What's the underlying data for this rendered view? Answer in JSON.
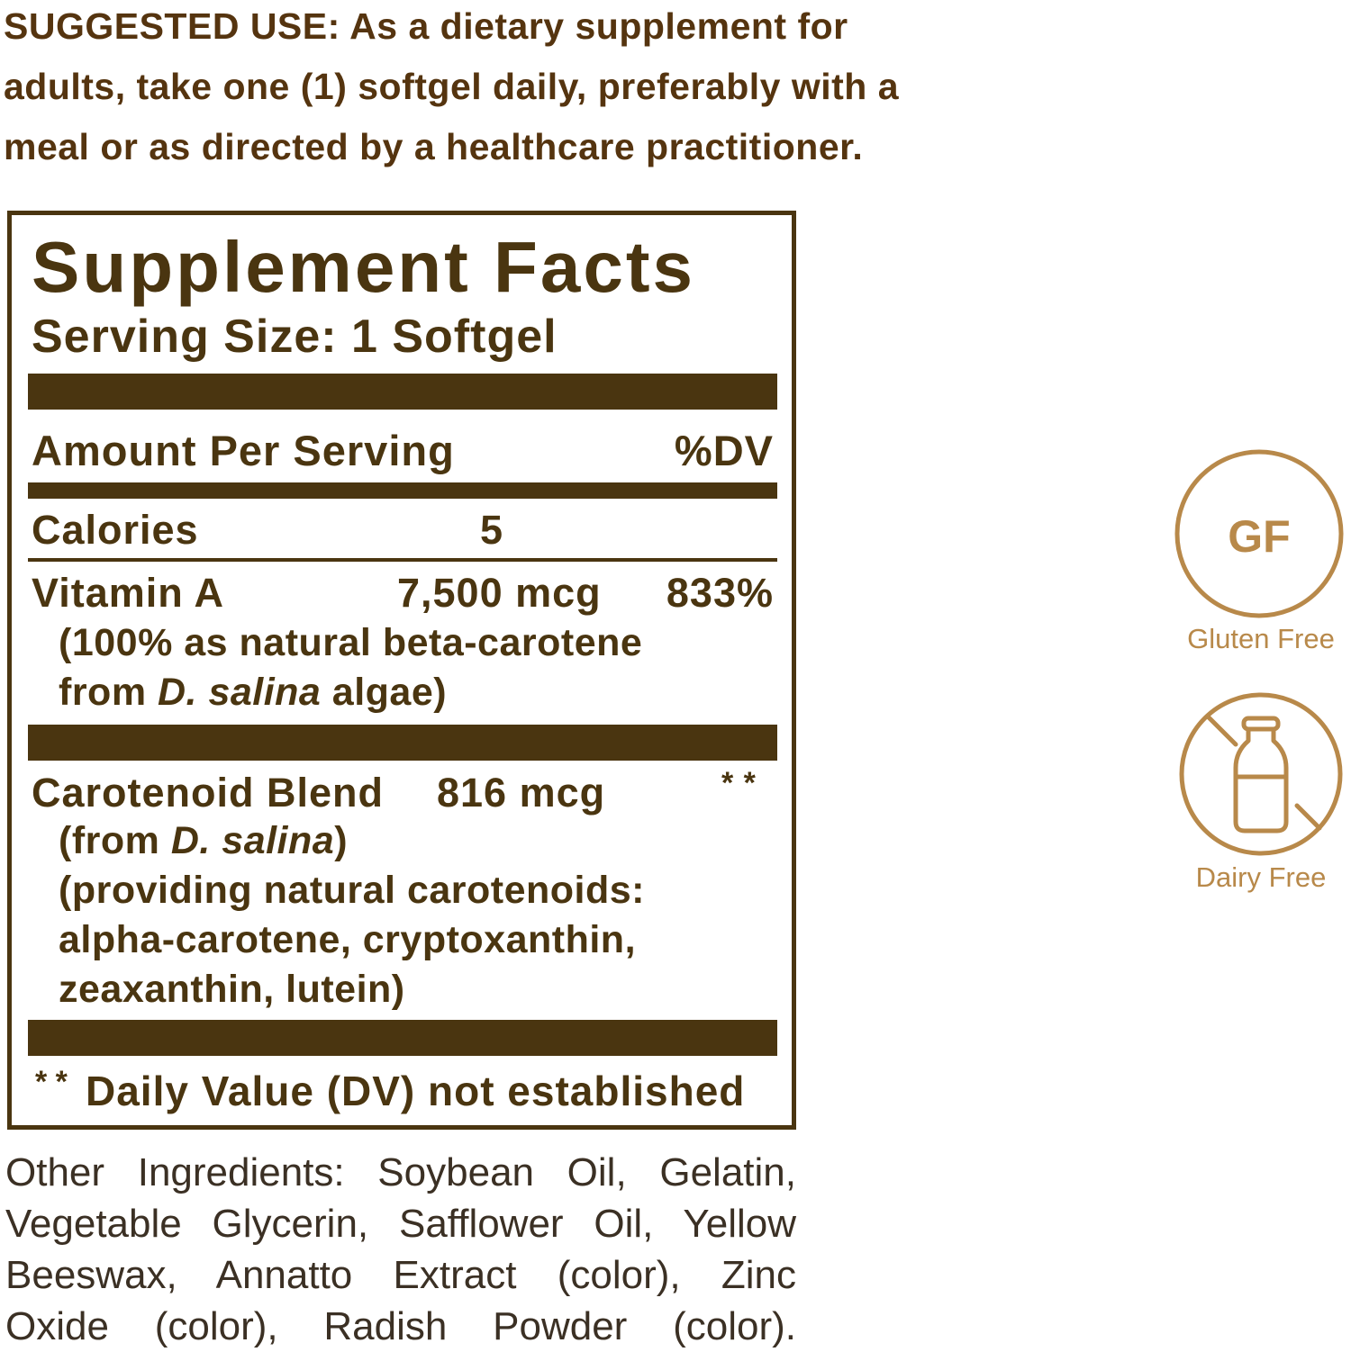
{
  "suggested_use": {
    "lines": [
      "SUGGESTED USE: As a dietary supplement for",
      "adults, take one (1) softgel daily, preferably with a",
      "meal or as directed by a healthcare practitioner."
    ]
  },
  "facts": {
    "title": "Supplement Facts",
    "serving_size": "Serving Size: 1 Softgel",
    "amount_header": "Amount Per Serving",
    "dv_header": "%DV",
    "calories": {
      "name": "Calories",
      "amount": "5"
    },
    "vitamin_a": {
      "name": "Vitamin A",
      "amount": "7,500 mcg",
      "dv": "833%",
      "note_1": "(100% as natural beta-carotene",
      "note_2_prefix": "from ",
      "note_2_italic": "D. salina",
      "note_2_suffix": " algae)"
    },
    "carotenoid": {
      "name": "Carotenoid Blend",
      "amount": "816 mcg",
      "dv": "* *",
      "note_1_prefix": "(from ",
      "note_1_italic": "D. salina",
      "note_1_suffix": ")",
      "note_2": "(providing natural carotenoids:",
      "note_3": "alpha-carotene, cryptoxanthin,",
      "note_4": "zeaxanthin, lutein)"
    },
    "footnote_mark": "* *",
    "footnote": "Daily Value (DV) not established"
  },
  "other_ingredients": {
    "lines": [
      "Other Ingredients: Soybean Oil, Gelatin,",
      "Vegetable Glycerin, Safflower Oil, Yellow",
      "Beeswax, Annatto Extract (color), Zinc",
      "Oxide (color), Radish Powder (color)."
    ]
  },
  "badges": [
    {
      "icon": "gluten-free-icon",
      "mark": "GF",
      "label": "Gluten Free"
    },
    {
      "icon": "dairy-free-icon",
      "label": "Dairy Free"
    }
  ],
  "colors": {
    "label_brown": "#4a3510",
    "text_brown": "#55340f",
    "badge_gold": "#b8894a"
  }
}
